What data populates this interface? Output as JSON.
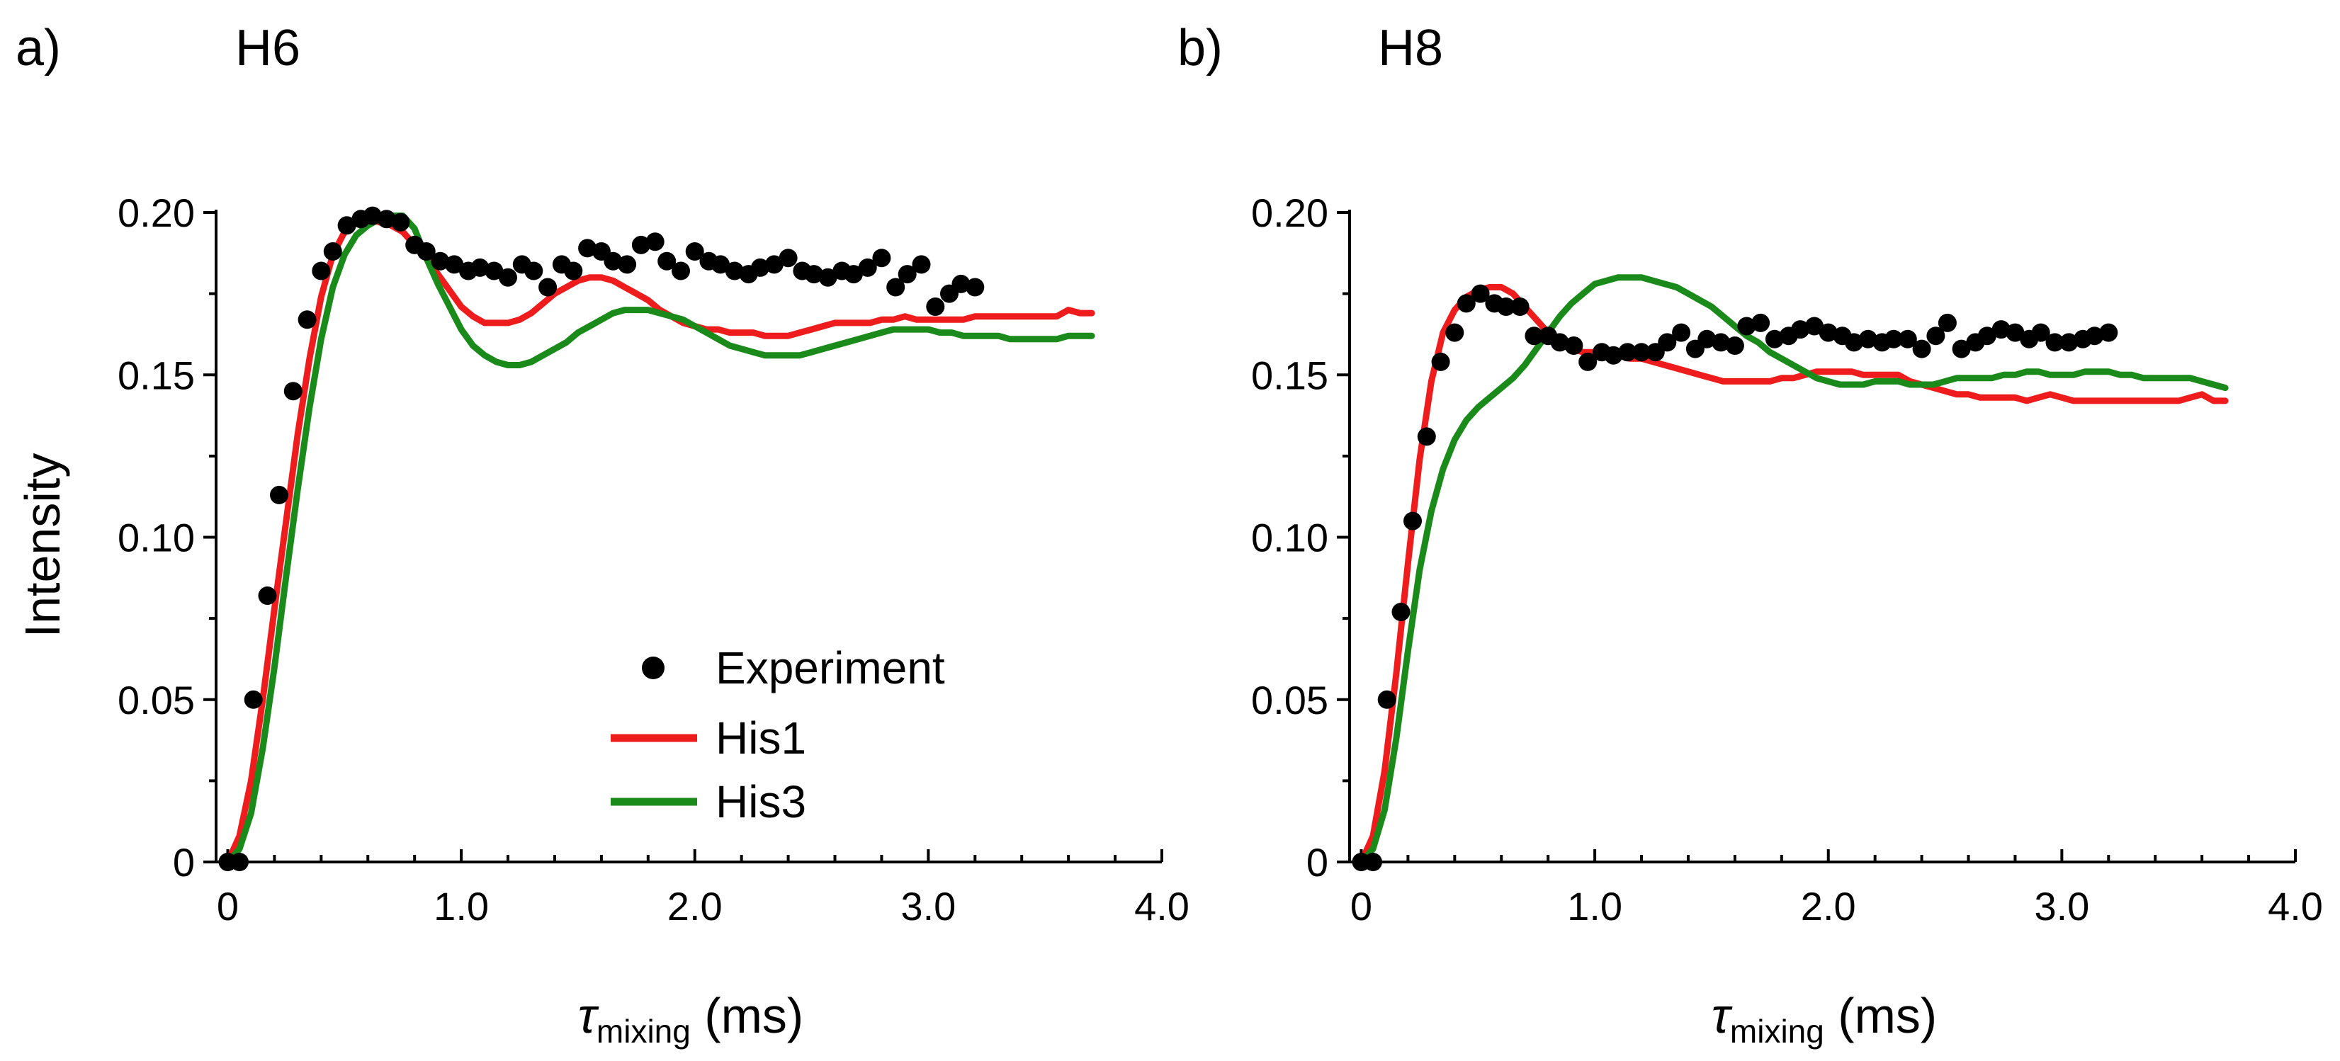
{
  "figure": {
    "xlabel_symbol": "τ",
    "xlabel_sub": "mixing",
    "xlabel_unit": " (ms)",
    "legend": {
      "experiment": "Experiment",
      "his1": "His1",
      "his3": "His3"
    }
  },
  "colors": {
    "experiment": "#000000",
    "his1": "#ee1c1c",
    "his3": "#1a8a1a",
    "axis": "#000000"
  },
  "chart_data": [
    {
      "type": "scatter",
      "panel_label": "a)",
      "title": "H6",
      "xlabel": "τmixing (ms)",
      "ylabel": "Intensity",
      "xlim": [
        -0.05,
        4.0
      ],
      "ylim": [
        0,
        0.2
      ],
      "xticks": [
        "0",
        "1.0",
        "2.0",
        "3.0",
        "4.0"
      ],
      "yticks": [
        "0",
        "0.05",
        "0.10",
        "0.15",
        "0.20"
      ],
      "legend_position": "lower-center",
      "series": [
        {
          "name": "Experiment",
          "style": "markers",
          "x": [
            0.0,
            0.05,
            0.11,
            0.17,
            0.22,
            0.28,
            0.34,
            0.4,
            0.45,
            0.51,
            0.57,
            0.62,
            0.68,
            0.74,
            0.8,
            0.85,
            0.91,
            0.97,
            1.03,
            1.08,
            1.14,
            1.2,
            1.26,
            1.31,
            1.37,
            1.43,
            1.48,
            1.54,
            1.6,
            1.65,
            1.71,
            1.77,
            1.83,
            1.88,
            1.94,
            2.0,
            2.06,
            2.11,
            2.17,
            2.23,
            2.28,
            2.34,
            2.4,
            2.46,
            2.51,
            2.57,
            2.63,
            2.68,
            2.74,
            2.8,
            2.86,
            2.91,
            2.97,
            3.03,
            3.09,
            3.14,
            3.2
          ],
          "y": [
            0.0,
            0.0,
            0.05,
            0.082,
            0.113,
            0.145,
            0.167,
            0.182,
            0.188,
            0.196,
            0.198,
            0.199,
            0.198,
            0.197,
            0.19,
            0.188,
            0.185,
            0.184,
            0.182,
            0.183,
            0.182,
            0.18,
            0.184,
            0.182,
            0.177,
            0.184,
            0.182,
            0.189,
            0.188,
            0.185,
            0.184,
            0.19,
            0.191,
            0.185,
            0.182,
            0.188,
            0.185,
            0.184,
            0.182,
            0.181,
            0.183,
            0.184,
            0.186,
            0.182,
            0.181,
            0.18,
            0.182,
            0.181,
            0.183,
            0.186,
            0.177,
            0.181,
            0.184,
            0.171,
            0.175,
            0.178,
            0.177
          ]
        },
        {
          "name": "His1",
          "style": "line",
          "x": [
            0.0,
            0.05,
            0.1,
            0.15,
            0.2,
            0.25,
            0.3,
            0.35,
            0.4,
            0.45,
            0.5,
            0.55,
            0.6,
            0.65,
            0.7,
            0.75,
            0.8,
            0.85,
            0.9,
            0.95,
            1.0,
            1.05,
            1.1,
            1.15,
            1.2,
            1.25,
            1.3,
            1.35,
            1.4,
            1.45,
            1.5,
            1.55,
            1.6,
            1.65,
            1.7,
            1.75,
            1.8,
            1.85,
            1.9,
            1.95,
            2.0,
            2.05,
            2.1,
            2.15,
            2.2,
            2.25,
            2.3,
            2.35,
            2.4,
            2.45,
            2.5,
            2.55,
            2.6,
            2.65,
            2.7,
            2.75,
            2.8,
            2.85,
            2.9,
            2.95,
            3.0,
            3.05,
            3.1,
            3.15,
            3.2,
            3.25,
            3.3,
            3.35,
            3.4,
            3.45,
            3.5,
            3.55,
            3.6,
            3.65,
            3.7
          ],
          "y": [
            0.0,
            0.008,
            0.025,
            0.05,
            0.078,
            0.105,
            0.132,
            0.155,
            0.174,
            0.187,
            0.194,
            0.197,
            0.198,
            0.197,
            0.196,
            0.194,
            0.19,
            0.186,
            0.181,
            0.176,
            0.171,
            0.168,
            0.166,
            0.166,
            0.166,
            0.167,
            0.169,
            0.172,
            0.175,
            0.177,
            0.179,
            0.18,
            0.18,
            0.179,
            0.177,
            0.175,
            0.173,
            0.17,
            0.168,
            0.166,
            0.165,
            0.164,
            0.164,
            0.163,
            0.163,
            0.163,
            0.162,
            0.162,
            0.162,
            0.163,
            0.164,
            0.165,
            0.166,
            0.166,
            0.166,
            0.166,
            0.167,
            0.167,
            0.168,
            0.167,
            0.167,
            0.167,
            0.167,
            0.167,
            0.168,
            0.168,
            0.168,
            0.168,
            0.168,
            0.168,
            0.168,
            0.168,
            0.17,
            0.169,
            0.169
          ]
        },
        {
          "name": "His3",
          "style": "line",
          "x": [
            0.0,
            0.05,
            0.1,
            0.15,
            0.2,
            0.25,
            0.3,
            0.35,
            0.4,
            0.45,
            0.5,
            0.55,
            0.6,
            0.65,
            0.7,
            0.75,
            0.8,
            0.85,
            0.9,
            0.95,
            1.0,
            1.05,
            1.1,
            1.15,
            1.2,
            1.25,
            1.3,
            1.35,
            1.4,
            1.45,
            1.5,
            1.55,
            1.6,
            1.65,
            1.7,
            1.75,
            1.8,
            1.85,
            1.9,
            1.95,
            2.0,
            2.05,
            2.1,
            2.15,
            2.2,
            2.25,
            2.3,
            2.35,
            2.4,
            2.45,
            2.5,
            2.55,
            2.6,
            2.65,
            2.7,
            2.75,
            2.8,
            2.85,
            2.9,
            2.95,
            3.0,
            3.05,
            3.1,
            3.15,
            3.2,
            3.25,
            3.3,
            3.35,
            3.4,
            3.45,
            3.5,
            3.55,
            3.6,
            3.65,
            3.7
          ],
          "y": [
            0.0,
            0.004,
            0.015,
            0.035,
            0.06,
            0.088,
            0.115,
            0.14,
            0.161,
            0.177,
            0.187,
            0.193,
            0.196,
            0.198,
            0.199,
            0.199,
            0.195,
            0.186,
            0.178,
            0.171,
            0.164,
            0.159,
            0.156,
            0.154,
            0.153,
            0.153,
            0.154,
            0.156,
            0.158,
            0.16,
            0.163,
            0.165,
            0.167,
            0.169,
            0.17,
            0.17,
            0.17,
            0.169,
            0.168,
            0.167,
            0.165,
            0.163,
            0.161,
            0.159,
            0.158,
            0.157,
            0.156,
            0.156,
            0.156,
            0.156,
            0.157,
            0.158,
            0.159,
            0.16,
            0.161,
            0.162,
            0.163,
            0.164,
            0.164,
            0.164,
            0.164,
            0.163,
            0.163,
            0.162,
            0.162,
            0.162,
            0.162,
            0.161,
            0.161,
            0.161,
            0.161,
            0.161,
            0.162,
            0.162,
            0.162
          ]
        }
      ]
    },
    {
      "type": "scatter",
      "panel_label": "b)",
      "title": "H8",
      "xlabel": "τmixing (ms)",
      "ylabel": "",
      "xlim": [
        -0.05,
        4.0
      ],
      "ylim": [
        0,
        0.2
      ],
      "xticks": [
        "0",
        "1.0",
        "2.0",
        "3.0",
        "4.0"
      ],
      "yticks": [
        "0",
        "0.05",
        "0.10",
        "0.15",
        "0.20"
      ],
      "series": [
        {
          "name": "Experiment",
          "style": "markers",
          "x": [
            0.0,
            0.05,
            0.11,
            0.17,
            0.22,
            0.28,
            0.34,
            0.4,
            0.45,
            0.51,
            0.57,
            0.62,
            0.68,
            0.74,
            0.8,
            0.85,
            0.91,
            0.97,
            1.03,
            1.08,
            1.14,
            1.2,
            1.26,
            1.31,
            1.37,
            1.43,
            1.48,
            1.54,
            1.6,
            1.65,
            1.71,
            1.77,
            1.83,
            1.88,
            1.94,
            2.0,
            2.06,
            2.11,
            2.17,
            2.23,
            2.28,
            2.34,
            2.4,
            2.46,
            2.51,
            2.57,
            2.63,
            2.68,
            2.74,
            2.8,
            2.86,
            2.91,
            2.97,
            3.03,
            3.09,
            3.14,
            3.2
          ],
          "y": [
            0.0,
            0.0,
            0.05,
            0.077,
            0.105,
            0.131,
            0.154,
            0.163,
            0.172,
            0.175,
            0.172,
            0.171,
            0.171,
            0.162,
            0.162,
            0.16,
            0.159,
            0.154,
            0.157,
            0.156,
            0.157,
            0.157,
            0.157,
            0.16,
            0.163,
            0.158,
            0.161,
            0.16,
            0.159,
            0.165,
            0.166,
            0.161,
            0.162,
            0.164,
            0.165,
            0.163,
            0.162,
            0.16,
            0.161,
            0.16,
            0.161,
            0.161,
            0.158,
            0.162,
            0.166,
            0.158,
            0.16,
            0.162,
            0.164,
            0.163,
            0.161,
            0.163,
            0.16,
            0.16,
            0.161,
            0.162,
            0.163
          ]
        },
        {
          "name": "His1",
          "style": "line",
          "x": [
            0.0,
            0.05,
            0.1,
            0.15,
            0.2,
            0.25,
            0.3,
            0.35,
            0.4,
            0.45,
            0.5,
            0.55,
            0.6,
            0.65,
            0.7,
            0.75,
            0.8,
            0.85,
            0.9,
            0.95,
            1.0,
            1.05,
            1.1,
            1.15,
            1.2,
            1.25,
            1.3,
            1.35,
            1.4,
            1.45,
            1.5,
            1.55,
            1.6,
            1.65,
            1.7,
            1.75,
            1.8,
            1.85,
            1.9,
            1.95,
            2.0,
            2.05,
            2.1,
            2.15,
            2.2,
            2.25,
            2.3,
            2.35,
            2.4,
            2.45,
            2.5,
            2.55,
            2.6,
            2.65,
            2.7,
            2.75,
            2.8,
            2.85,
            2.9,
            2.95,
            3.0,
            3.05,
            3.1,
            3.15,
            3.2,
            3.25,
            3.3,
            3.35,
            3.4,
            3.45,
            3.5,
            3.55,
            3.6,
            3.65,
            3.7
          ],
          "y": [
            0.0,
            0.008,
            0.028,
            0.058,
            0.092,
            0.124,
            0.148,
            0.163,
            0.17,
            0.174,
            0.176,
            0.177,
            0.177,
            0.175,
            0.171,
            0.167,
            0.163,
            0.16,
            0.158,
            0.157,
            0.157,
            0.156,
            0.156,
            0.155,
            0.155,
            0.154,
            0.153,
            0.152,
            0.151,
            0.15,
            0.149,
            0.148,
            0.148,
            0.148,
            0.148,
            0.148,
            0.149,
            0.149,
            0.15,
            0.151,
            0.151,
            0.151,
            0.151,
            0.15,
            0.15,
            0.15,
            0.15,
            0.148,
            0.147,
            0.146,
            0.145,
            0.144,
            0.144,
            0.143,
            0.143,
            0.143,
            0.143,
            0.142,
            0.143,
            0.144,
            0.143,
            0.142,
            0.142,
            0.142,
            0.142,
            0.142,
            0.142,
            0.142,
            0.142,
            0.142,
            0.142,
            0.143,
            0.144,
            0.142,
            0.142
          ]
        },
        {
          "name": "His3",
          "style": "line",
          "x": [
            0.0,
            0.05,
            0.1,
            0.15,
            0.2,
            0.25,
            0.3,
            0.35,
            0.4,
            0.45,
            0.5,
            0.55,
            0.6,
            0.65,
            0.7,
            0.75,
            0.8,
            0.85,
            0.9,
            0.95,
            1.0,
            1.05,
            1.1,
            1.15,
            1.2,
            1.25,
            1.3,
            1.35,
            1.4,
            1.45,
            1.5,
            1.55,
            1.6,
            1.65,
            1.7,
            1.75,
            1.8,
            1.85,
            1.9,
            1.95,
            2.0,
            2.05,
            2.1,
            2.15,
            2.2,
            2.25,
            2.3,
            2.35,
            2.4,
            2.45,
            2.5,
            2.55,
            2.6,
            2.65,
            2.7,
            2.75,
            2.8,
            2.85,
            2.9,
            2.95,
            3.0,
            3.05,
            3.1,
            3.15,
            3.2,
            3.25,
            3.3,
            3.35,
            3.4,
            3.45,
            3.5,
            3.55,
            3.6,
            3.65,
            3.7
          ],
          "y": [
            0.0,
            0.004,
            0.016,
            0.038,
            0.065,
            0.09,
            0.108,
            0.121,
            0.13,
            0.136,
            0.14,
            0.143,
            0.146,
            0.149,
            0.153,
            0.158,
            0.163,
            0.168,
            0.172,
            0.175,
            0.178,
            0.179,
            0.18,
            0.18,
            0.18,
            0.179,
            0.178,
            0.177,
            0.175,
            0.173,
            0.171,
            0.168,
            0.165,
            0.162,
            0.16,
            0.157,
            0.155,
            0.153,
            0.151,
            0.149,
            0.148,
            0.147,
            0.147,
            0.147,
            0.148,
            0.148,
            0.148,
            0.147,
            0.147,
            0.147,
            0.148,
            0.149,
            0.149,
            0.149,
            0.149,
            0.15,
            0.15,
            0.151,
            0.151,
            0.15,
            0.15,
            0.15,
            0.151,
            0.151,
            0.151,
            0.15,
            0.15,
            0.149,
            0.149,
            0.149,
            0.149,
            0.149,
            0.148,
            0.147,
            0.146
          ]
        }
      ]
    }
  ]
}
